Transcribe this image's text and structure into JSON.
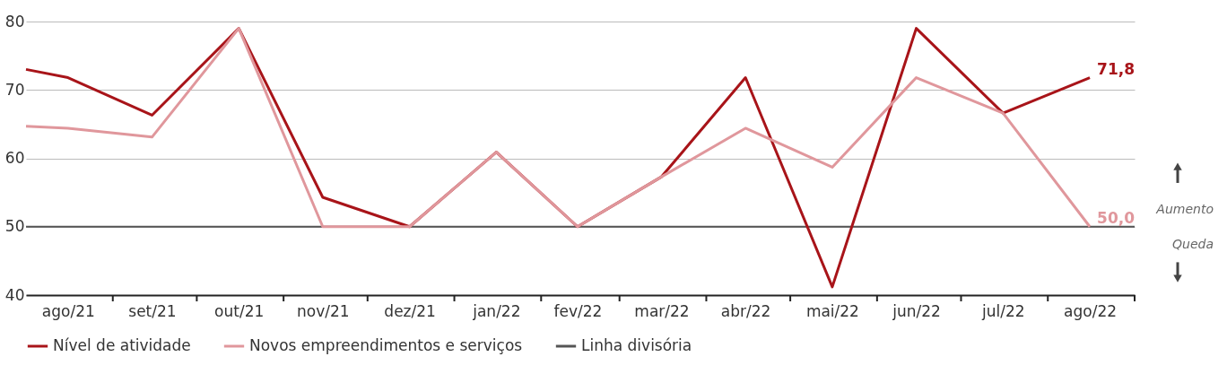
{
  "chart_data": {
    "type": "line",
    "x": [
      "2021-08-01",
      "2021-08-16",
      "2021-09-15",
      "2021-10-16",
      "2021-11-15",
      "2021-12-16",
      "2022-01-16",
      "2022-02-14",
      "2022-03-16",
      "2022-04-15",
      "2022-05-16",
      "2022-06-15",
      "2022-07-16",
      "2022-08-16"
    ],
    "xlim": [
      "2021-08-01",
      "2022-09-01"
    ],
    "xticks": [
      {
        "value": "2021-08-16",
        "label": "ago/21"
      },
      {
        "value": "2021-09-15",
        "label": "set/21"
      },
      {
        "value": "2021-10-16",
        "label": "out/21"
      },
      {
        "value": "2021-11-15",
        "label": "nov/21"
      },
      {
        "value": "2021-12-16",
        "label": "dez/21"
      },
      {
        "value": "2022-01-16",
        "label": "jan/22"
      },
      {
        "value": "2022-02-14",
        "label": "fev/22"
      },
      {
        "value": "2022-03-16",
        "label": "mar/22"
      },
      {
        "value": "2022-04-15",
        "label": "abr/22"
      },
      {
        "value": "2022-05-16",
        "label": "mai/22"
      },
      {
        "value": "2022-06-15",
        "label": "jun/22"
      },
      {
        "value": "2022-07-16",
        "label": "jul/22"
      },
      {
        "value": "2022-08-16",
        "label": "ago/22"
      },
      {
        "value": "2021-09-01",
        "label": null
      },
      {
        "value": "2021-10-01",
        "label": null
      },
      {
        "value": "2021-11-01",
        "label": null
      },
      {
        "value": "2021-12-01",
        "label": null
      },
      {
        "value": "2022-01-01",
        "label": null
      },
      {
        "value": "2022-02-01",
        "label": null
      },
      {
        "value": "2022-03-01",
        "label": null
      },
      {
        "value": "2022-04-01",
        "label": null
      },
      {
        "value": "2022-05-01",
        "label": null
      },
      {
        "value": "2022-06-01",
        "label": null
      },
      {
        "value": "2022-07-01",
        "label": null
      },
      {
        "value": "2022-08-01",
        "label": null
      },
      {
        "value": "2022-09-01",
        "label": null
      }
    ],
    "ylim": [
      40,
      80
    ],
    "yticks": [
      40,
      50,
      60,
      70,
      80
    ],
    "grid": "y",
    "legend": "bottom",
    "line_style": "solid",
    "marker": "none",
    "series": [
      {
        "name": "Nível de atividade",
        "color": "#a81419",
        "values": [
          73,
          71.8,
          66.3,
          79,
          54.3,
          50,
          60.9,
          50,
          57.3,
          71.8,
          41.2,
          79,
          66.6,
          71.8
        ],
        "value_labels": [
          null,
          null,
          null,
          null,
          null,
          null,
          null,
          null,
          null,
          null,
          null,
          null,
          null,
          "71,8"
        ]
      },
      {
        "name": "Novos empreendimentos e serviços",
        "color": "#e0979c",
        "values": [
          64.7,
          64.4,
          63.1,
          79,
          50,
          50,
          60.9,
          50,
          57.3,
          64.4,
          58.7,
          71.8,
          66.6,
          50
        ],
        "value_labels": [
          null,
          null,
          null,
          null,
          null,
          null,
          null,
          null,
          null,
          null,
          null,
          null,
          null,
          "50,0"
        ]
      }
    ],
    "ref_lines": [
      {
        "axis": "y",
        "value": 50,
        "label": "Linha divisória",
        "color": "#555555",
        "line_style": "solid"
      }
    ],
    "annotations": [
      "Aumento",
      "Queda"
    ]
  }
}
